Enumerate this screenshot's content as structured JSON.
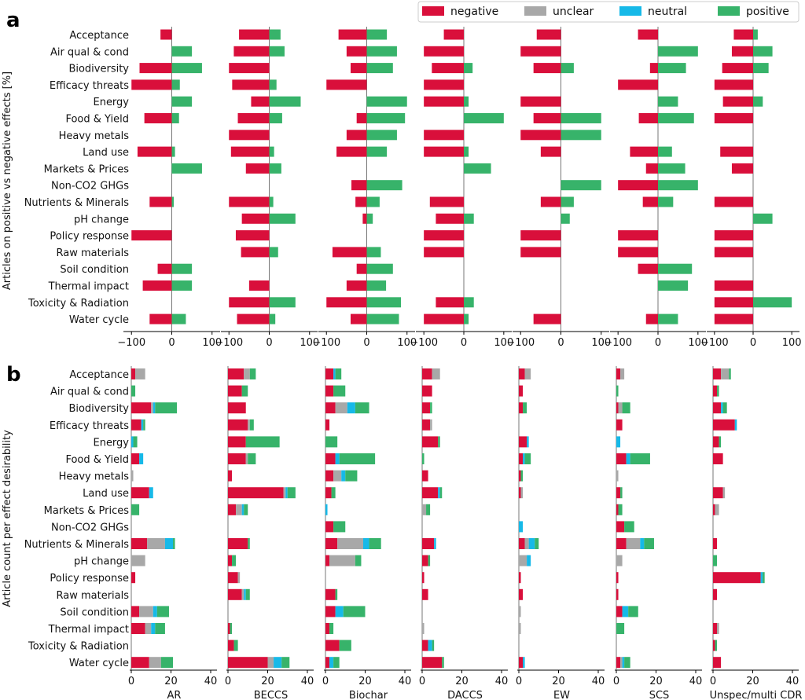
{
  "colors": {
    "negative": "#d90f3b",
    "unclear": "#a8a8a8",
    "neutral": "#16b9e8",
    "positive": "#37b36a"
  },
  "legend": [
    {
      "key": "negative",
      "label": "negative"
    },
    {
      "key": "unclear",
      "label": "unclear"
    },
    {
      "key": "neutral",
      "label": "neutral"
    },
    {
      "key": "positive",
      "label": "positive"
    }
  ],
  "chart_data": [
    {
      "panel": "a",
      "type": "bar",
      "orientation": "horizontal",
      "ylabel": "Articles on positive vs negative effects [%]",
      "xlim": [
        -120,
        120
      ],
      "xticks": [
        "−100",
        "0",
        "100"
      ],
      "categories": [
        "Acceptance",
        "Air qual & cond",
        "Biodiversity",
        "Efficacy threats",
        "Energy",
        "Food & Yield",
        "Heavy metals",
        "Land use",
        "Markets & Prices",
        "Non-CO2 GHGs",
        "Nutrients & Minerals",
        "pH change",
        "Policy response",
        "Raw materials",
        "Soil condition",
        "Thermal impact",
        "Toxicity & Radiation",
        "Water cycle"
      ],
      "methods": [
        {
          "name": "AR",
          "negative": [
            -28,
            0,
            -80,
            -100,
            0,
            -68,
            0,
            -85,
            0,
            0,
            -55,
            0,
            -100,
            0,
            -35,
            -72,
            0,
            -55
          ],
          "positive": [
            0,
            50,
            75,
            20,
            50,
            18,
            0,
            8,
            75,
            0,
            5,
            0,
            0,
            0,
            50,
            50,
            0,
            35
          ]
        },
        {
          "name": "BECCS",
          "negative": [
            -75,
            -88,
            -100,
            -92,
            -45,
            -78,
            -100,
            -95,
            -58,
            0,
            -100,
            -68,
            -83,
            -70,
            0,
            -50,
            -100,
            -80
          ],
          "positive": [
            28,
            38,
            0,
            18,
            78,
            32,
            0,
            12,
            30,
            0,
            10,
            65,
            0,
            22,
            0,
            0,
            65,
            15
          ]
        },
        {
          "name": "Biochar",
          "negative": [
            -70,
            -50,
            -40,
            -100,
            0,
            -25,
            -50,
            -75,
            0,
            -38,
            -28,
            -10,
            0,
            -85,
            -25,
            -50,
            -100,
            -40
          ],
          "positive": [
            50,
            75,
            65,
            0,
            100,
            95,
            75,
            50,
            0,
            88,
            32,
            15,
            0,
            35,
            65,
            48,
            85,
            80
          ]
        },
        {
          "name": "DACCS",
          "negative": [
            -50,
            -100,
            -80,
            -100,
            -100,
            0,
            -100,
            -100,
            0,
            0,
            -85,
            -70,
            -100,
            -100,
            0,
            0,
            -70,
            -100
          ],
          "positive": [
            0,
            0,
            22,
            0,
            12,
            100,
            0,
            12,
            68,
            0,
            0,
            25,
            0,
            0,
            0,
            0,
            25,
            12
          ]
        },
        {
          "name": "EW",
          "negative": [
            -60,
            -100,
            -68,
            0,
            -100,
            -68,
            -100,
            -50,
            0,
            0,
            -50,
            0,
            -100,
            -100,
            0,
            0,
            0,
            -68
          ],
          "positive": [
            0,
            0,
            32,
            0,
            0,
            100,
            100,
            0,
            0,
            100,
            32,
            22,
            0,
            0,
            0,
            0,
            0,
            0
          ]
        },
        {
          "name": "SCS",
          "negative": [
            -50,
            0,
            -20,
            -100,
            0,
            -48,
            0,
            -70,
            -30,
            -100,
            -38,
            0,
            -100,
            -100,
            -50,
            0,
            0,
            -30
          ],
          "positive": [
            0,
            100,
            70,
            0,
            50,
            90,
            0,
            35,
            68,
            100,
            38,
            0,
            0,
            0,
            85,
            75,
            0,
            50
          ]
        },
        {
          "name": "Unspec/multi CDR",
          "negative": [
            -50,
            -55,
            -80,
            -100,
            -78,
            -100,
            0,
            -85,
            -55,
            0,
            -100,
            0,
            -100,
            -100,
            0,
            -100,
            -100,
            -100
          ],
          "positive": [
            12,
            50,
            40,
            0,
            25,
            0,
            0,
            0,
            0,
            0,
            0,
            50,
            0,
            0,
            0,
            0,
            100,
            0
          ]
        }
      ]
    },
    {
      "panel": "b",
      "type": "bar",
      "orientation": "horizontal",
      "stacked": true,
      "ylabel": "Article count per effect desirability",
      "xlim": [
        0,
        40
      ],
      "xticks": [
        "0",
        "20",
        "40"
      ],
      "categories": [
        "Acceptance",
        "Air qual & cond",
        "Biodiversity",
        "Efficacy threats",
        "Energy",
        "Food & Yield",
        "Heavy metals",
        "Land use",
        "Markets & Prices",
        "Non-CO2 GHGs",
        "Nutrients & Minerals",
        "pH change",
        "Policy response",
        "Raw materials",
        "Soil condition",
        "Thermal impact",
        "Toxicity & Radiation",
        "Water cycle"
      ],
      "methods": [
        {
          "name": "AR",
          "negative": [
            2,
            0,
            10,
            5,
            0,
            4,
            0,
            9,
            0,
            0,
            8,
            0,
            2,
            0,
            4,
            7,
            0,
            9
          ],
          "unclear": [
            5,
            0,
            1,
            0,
            0,
            0,
            1,
            0,
            0,
            0,
            9,
            7,
            0,
            0,
            7,
            3,
            0,
            6
          ],
          "neutral": [
            0,
            0,
            1,
            1,
            1,
            2,
            0,
            2,
            0,
            0,
            4,
            0,
            0,
            0,
            2,
            2,
            0,
            0
          ],
          "positive": [
            0,
            2,
            11,
            1,
            2,
            0,
            0,
            0,
            4,
            0,
            1,
            0,
            0,
            0,
            6,
            5,
            0,
            6
          ]
        },
        {
          "name": "BECCS",
          "negative": [
            8,
            7,
            9,
            10,
            9,
            9,
            2,
            28,
            4,
            0,
            10,
            2,
            5,
            7,
            0,
            1,
            3,
            20
          ],
          "unclear": [
            3,
            0,
            0,
            1,
            0,
            1,
            0,
            1,
            3,
            0,
            0,
            0,
            1,
            1,
            0,
            0,
            0,
            3
          ],
          "neutral": [
            0,
            0,
            0,
            0,
            0,
            0,
            0,
            1,
            1,
            0,
            0,
            0,
            0,
            1,
            0,
            0,
            0,
            4
          ],
          "positive": [
            3,
            3,
            0,
            2,
            17,
            4,
            0,
            4,
            2,
            0,
            1,
            2,
            0,
            2,
            0,
            1,
            2,
            4
          ]
        },
        {
          "name": "Biochar",
          "negative": [
            4,
            4,
            5,
            2,
            0,
            5,
            4,
            3,
            0,
            4,
            6,
            2,
            0,
            5,
            5,
            2,
            7,
            2
          ],
          "unclear": [
            0,
            0,
            6,
            0,
            0,
            0,
            4,
            0,
            0,
            0,
            13,
            13,
            0,
            0,
            0,
            0,
            0,
            0
          ],
          "neutral": [
            1,
            0,
            4,
            0,
            0,
            2,
            2,
            0,
            1,
            0,
            3,
            0,
            0,
            0,
            4,
            0,
            0,
            2
          ],
          "positive": [
            3,
            6,
            7,
            0,
            6,
            18,
            6,
            2,
            0,
            6,
            6,
            3,
            0,
            1,
            11,
            2,
            6,
            3
          ]
        },
        {
          "name": "DACCS",
          "negative": [
            5,
            5,
            4,
            4,
            8,
            0,
            3,
            8,
            0,
            0,
            6,
            3,
            1,
            3,
            0,
            0,
            3,
            10
          ],
          "unclear": [
            4,
            0,
            0,
            1,
            0,
            0,
            0,
            0,
            2,
            0,
            0,
            0,
            0,
            0,
            0,
            1,
            0,
            0
          ],
          "neutral": [
            0,
            0,
            0,
            0,
            0,
            0,
            0,
            1,
            0,
            0,
            1,
            0,
            0,
            0,
            0,
            0,
            2,
            0
          ],
          "positive": [
            0,
            0,
            1,
            0,
            1,
            1,
            0,
            1,
            2,
            0,
            0,
            1,
            0,
            0,
            0,
            0,
            1,
            1
          ]
        },
        {
          "name": "EW",
          "negative": [
            3,
            2,
            2,
            0,
            4,
            2,
            1,
            1,
            0,
            0,
            3,
            0,
            1,
            2,
            0,
            0,
            0,
            2
          ],
          "unclear": [
            3,
            0,
            0,
            0,
            0,
            0,
            0,
            1,
            0,
            0,
            2,
            4,
            0,
            0,
            1,
            1,
            0,
            0
          ],
          "neutral": [
            0,
            0,
            0,
            0,
            1,
            1,
            0,
            0,
            0,
            2,
            3,
            2,
            0,
            0,
            0,
            0,
            0,
            1
          ],
          "positive": [
            0,
            0,
            2,
            0,
            0,
            3,
            1,
            0,
            0,
            0,
            2,
            0,
            0,
            0,
            0,
            0,
            0,
            0
          ]
        },
        {
          "name": "SCS",
          "negative": [
            2,
            0,
            1,
            3,
            0,
            5,
            0,
            2,
            1,
            4,
            5,
            0,
            1,
            1,
            3,
            0,
            0,
            2
          ],
          "unclear": [
            2,
            0,
            2,
            0,
            0,
            0,
            1,
            0,
            0,
            0,
            7,
            3,
            0,
            0,
            0,
            0,
            0,
            1
          ],
          "neutral": [
            0,
            0,
            0,
            0,
            2,
            2,
            0,
            0,
            0,
            0,
            2,
            0,
            0,
            0,
            3,
            0,
            0,
            1
          ],
          "positive": [
            0,
            1,
            4,
            0,
            0,
            10,
            0,
            1,
            2,
            5,
            5,
            0,
            0,
            0,
            5,
            4,
            0,
            3
          ]
        },
        {
          "name": "Unspec/multi CDR",
          "negative": [
            4,
            2,
            4,
            11,
            3,
            5,
            0,
            5,
            1,
            0,
            2,
            0,
            24,
            2,
            0,
            2,
            1,
            4
          ],
          "unclear": [
            4,
            0,
            0,
            0,
            0,
            0,
            0,
            1,
            2,
            0,
            0,
            0,
            0,
            0,
            0,
            1,
            0,
            0
          ],
          "neutral": [
            0,
            0,
            1,
            1,
            0,
            0,
            0,
            0,
            0,
            0,
            0,
            0,
            1,
            0,
            0,
            0,
            0,
            0
          ],
          "positive": [
            1,
            1,
            2,
            0,
            1,
            0,
            0,
            0,
            0,
            0,
            0,
            2,
            1,
            0,
            0,
            0,
            1,
            0
          ]
        }
      ]
    }
  ],
  "panels": {
    "a_letter": "a",
    "b_letter": "b"
  }
}
